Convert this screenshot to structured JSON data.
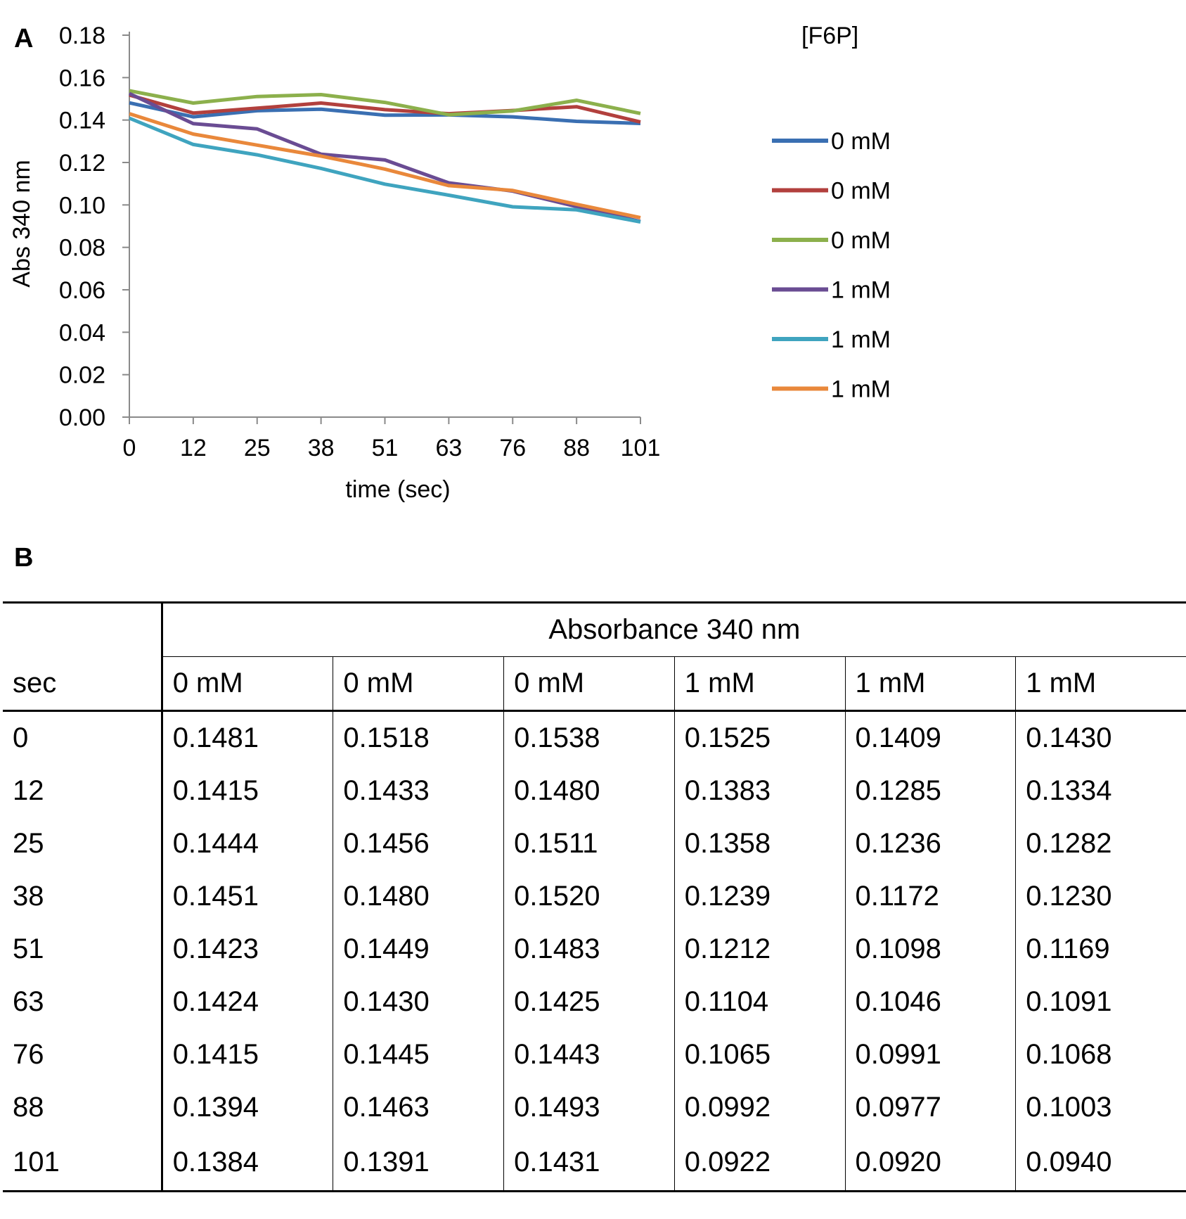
{
  "panel_labels": {
    "a": "A",
    "b": "B"
  },
  "chart_data": {
    "type": "line",
    "title": "",
    "xlabel": "time (sec)",
    "ylabel": "Abs 340 nm",
    "legend_title": "[F6P]",
    "legend_position": "right",
    "categories": [
      "0",
      "12",
      "25",
      "38",
      "51",
      "63",
      "76",
      "88",
      "101"
    ],
    "ylim": [
      0,
      0.18
    ],
    "yticks": [
      "0.00",
      "0.02",
      "0.04",
      "0.06",
      "0.08",
      "0.10",
      "0.12",
      "0.14",
      "0.16",
      "0.18"
    ],
    "grid": false,
    "series": [
      {
        "name": "0 mM",
        "color": "#3a6fb2",
        "values": [
          0.1481,
          0.1415,
          0.1444,
          0.1451,
          0.1423,
          0.1424,
          0.1415,
          0.1394,
          0.1384
        ]
      },
      {
        "name": "0 mM",
        "color": "#b2403d",
        "values": [
          0.1518,
          0.1433,
          0.1456,
          0.148,
          0.1449,
          0.143,
          0.1445,
          0.1463,
          0.1391
        ]
      },
      {
        "name": "0 mM",
        "color": "#8cb04c",
        "values": [
          0.1538,
          0.148,
          0.1511,
          0.152,
          0.1483,
          0.1425,
          0.1443,
          0.1493,
          0.1431
        ]
      },
      {
        "name": "1 mM",
        "color": "#6a4c93",
        "values": [
          0.1525,
          0.1383,
          0.1358,
          0.1239,
          0.1212,
          0.1104,
          0.1065,
          0.0992,
          0.0922
        ]
      },
      {
        "name": "1 mM",
        "color": "#3fa4bf",
        "values": [
          0.1409,
          0.1285,
          0.1236,
          0.1172,
          0.1098,
          0.1046,
          0.0991,
          0.0977,
          0.092
        ]
      },
      {
        "name": "1 mM",
        "color": "#e9883b",
        "values": [
          0.143,
          0.1334,
          0.1282,
          0.123,
          0.1169,
          0.1091,
          0.1068,
          0.1003,
          0.094
        ]
      }
    ]
  },
  "table": {
    "group_header": "Absorbance 340 nm",
    "row_header": "sec",
    "columns": [
      "0 mM",
      "0 mM",
      "0 mM",
      "1 mM",
      "1 mM",
      "1 mM"
    ],
    "rows": [
      [
        "0",
        "0.1481",
        "0.1518",
        "0.1538",
        "0.1525",
        "0.1409",
        "0.1430"
      ],
      [
        "12",
        "0.1415",
        "0.1433",
        "0.1480",
        "0.1383",
        "0.1285",
        "0.1334"
      ],
      [
        "25",
        "0.1444",
        "0.1456",
        "0.1511",
        "0.1358",
        "0.1236",
        "0.1282"
      ],
      [
        "38",
        "0.1451",
        "0.1480",
        "0.1520",
        "0.1239",
        "0.1172",
        "0.1230"
      ],
      [
        "51",
        "0.1423",
        "0.1449",
        "0.1483",
        "0.1212",
        "0.1098",
        "0.1169"
      ],
      [
        "63",
        "0.1424",
        "0.1430",
        "0.1425",
        "0.1104",
        "0.1046",
        "0.1091"
      ],
      [
        "76",
        "0.1415",
        "0.1445",
        "0.1443",
        "0.1065",
        "0.0991",
        "0.1068"
      ],
      [
        "88",
        "0.1394",
        "0.1463",
        "0.1493",
        "0.0992",
        "0.0977",
        "0.1003"
      ],
      [
        "101",
        "0.1384",
        "0.1391",
        "0.1431",
        "0.0922",
        "0.0920",
        "0.0940"
      ]
    ]
  }
}
